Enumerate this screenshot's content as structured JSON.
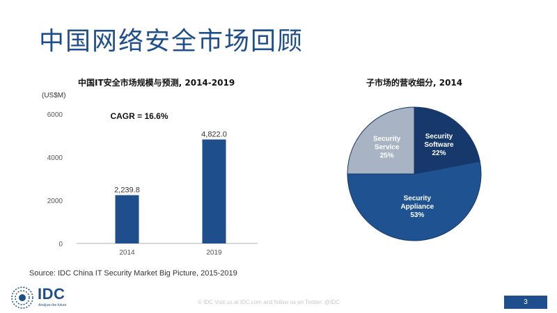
{
  "slide": {
    "title": "中国网络安全市场回顾",
    "source": "Source:  IDC China IT Security Market Big Picture, 2015-2019",
    "footer": "© IDC   Visit us at IDC.com  and follow us on Twitter: @IDC",
    "page_number": "3",
    "logo": {
      "text": "IDC",
      "tagline": "Analyze the future"
    }
  },
  "colors": {
    "brand": "#1f4e8c",
    "bar": "#1f4e8c",
    "pie_service": "#a8b3c4",
    "pie_software": "#17386b",
    "pie_appliance": "#1f5291"
  },
  "chart_data": [
    {
      "type": "bar",
      "title": "中国IT安全市场规模与预测, 2014-2019",
      "ylabel": "(US$M)",
      "xlabel": "",
      "categories": [
        "2014",
        "2019"
      ],
      "values": [
        2239.8,
        4822.0
      ],
      "value_labels": [
        "2,239.8",
        "4,822.0"
      ],
      "ylim": [
        0,
        6000
      ],
      "yticks": [
        0,
        2000,
        4000,
        6000
      ],
      "ytick_labels": [
        "0",
        "2000",
        "4000",
        "6000"
      ],
      "annotation": "CAGR = 16.6%",
      "grid": false
    },
    {
      "type": "pie",
      "title": "子市场的营收细分, 2014",
      "slices": [
        {
          "label": "Security Software",
          "value": 22,
          "value_label": "22%",
          "color": "#17386b"
        },
        {
          "label": "Security Appliance",
          "value": 53,
          "value_label": "53%",
          "color": "#1f5291"
        },
        {
          "label": "Security Service",
          "value": 25,
          "value_label": "25%",
          "color": "#a8b3c4"
        }
      ]
    }
  ]
}
